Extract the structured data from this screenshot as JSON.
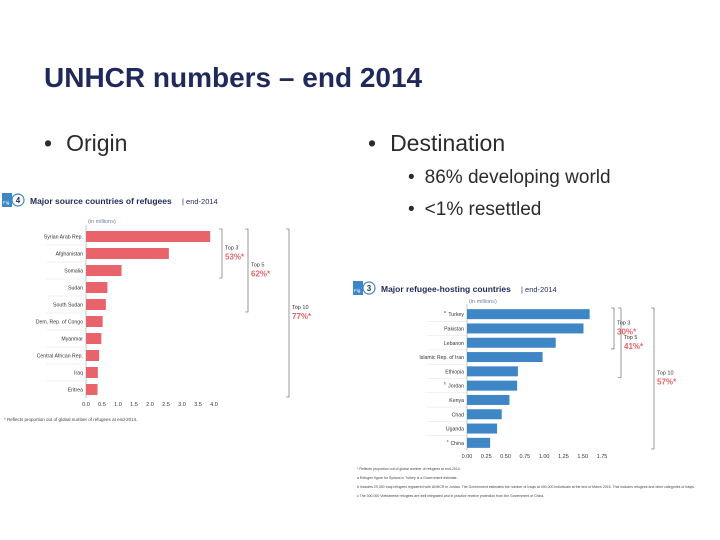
{
  "slide": {
    "title": "UNHCR numbers – end 2014",
    "bullets": {
      "origin": "Origin",
      "destination": "Destination"
    },
    "sub_bullets": [
      "86% developing world",
      "<1% resettled"
    ]
  },
  "colors": {
    "title": "#1f2a5a",
    "source_bar": "#e8636a",
    "host_bar": "#3f86c6",
    "annotation": "#e8636a",
    "fig_badge": "#3f86c6"
  },
  "chart_data": [
    {
      "type": "bar",
      "orientation": "horizontal",
      "fig_badge": "Fig. 4",
      "fig_number": "4",
      "title": "Major source countries of refugees",
      "title_suffix": "end-2014",
      "unit_label": "(in millions)",
      "categories": [
        "Syrian Arab Rep.",
        "Afghanistan",
        "Somalia",
        "Sudan",
        "South Sudan",
        "Dem. Rep. of Congo",
        "Myanmar",
        "Central African Rep.",
        "Iraq",
        "Eritrea"
      ],
      "values": [
        3.88,
        2.59,
        1.11,
        0.67,
        0.62,
        0.52,
        0.48,
        0.41,
        0.37,
        0.36
      ],
      "xlim": [
        0,
        4.0
      ],
      "xticks": [
        "0.0",
        "0.5",
        "1.0",
        "1.5",
        "2.0",
        "2.5",
        "3.0",
        "3.5",
        "4.0"
      ],
      "brackets": [
        {
          "label": "Top 3",
          "value": "53%*",
          "from_row": 0,
          "to_row": 2
        },
        {
          "label": "Top 5",
          "value": "62%*",
          "from_row": 0,
          "to_row": 4
        },
        {
          "label": "Top 10",
          "value": "77%*",
          "from_row": 0,
          "to_row": 9
        }
      ],
      "footnotes": [
        "* Reflects proportion out of global number of refugees at end-2014."
      ]
    },
    {
      "type": "bar",
      "orientation": "horizontal",
      "fig_badge": "Fig. 3",
      "fig_number": "3",
      "title": "Major refugee-hosting countries",
      "title_suffix": "end-2014",
      "unit_label": "(in millions)",
      "categories": [
        "Turkey",
        "Pakistan",
        "Lebanon",
        "Islamic Rep. of Iran",
        "Ethiopia",
        "Jordan",
        "Kenya",
        "Chad",
        "Uganda",
        "China"
      ],
      "category_markers": [
        "a",
        "",
        "",
        "",
        "",
        "b",
        "",
        "",
        "",
        "c"
      ],
      "values": [
        1.59,
        1.51,
        1.15,
        0.98,
        0.66,
        0.65,
        0.55,
        0.45,
        0.39,
        0.3
      ],
      "xlim": [
        0,
        1.75
      ],
      "xticks": [
        "0.00",
        "0.25",
        "0.50",
        "0.75",
        "1.00",
        "1.25",
        "1.50",
        "1.75"
      ],
      "brackets": [
        {
          "label": "Top 3",
          "value": "30%*",
          "from_row": 0,
          "to_row": 2
        },
        {
          "label": "Top 5",
          "value": "41%*",
          "from_row": 0,
          "to_row": 4
        },
        {
          "label": "Top 10",
          "value": "57%*",
          "from_row": 0,
          "to_row": 9
        }
      ],
      "footnotes": [
        "* Reflects proportion out of global number of refugees at end-2014.",
        "a Refugee figure for Syrians in Turkey is a Government estimate.",
        "b Includes 29,300 Iraqi refugees registered with UNHCR in Jordan. The Government estimates the number of Iraqis at 400,000 individuals at the end of March 2015. This includes refugees and other categories of Iraqis.",
        "c The 300,000 Vietnamese refugees are well integrated and in practice receive protection from the Government of China."
      ]
    }
  ]
}
